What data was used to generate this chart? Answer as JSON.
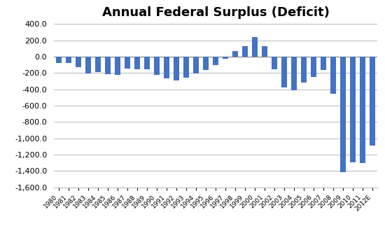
{
  "title": "Annual Federal Surplus (Deficit)",
  "years": [
    "1980",
    "1981",
    "1982",
    "1983",
    "1984",
    "1985",
    "1986",
    "1987",
    "1988",
    "1989",
    "1990",
    "1991",
    "1992",
    "1993",
    "1994",
    "1995",
    "1996",
    "1997",
    "1998",
    "1999",
    "2000",
    "2001",
    "2002",
    "2003",
    "2004",
    "2005",
    "2006",
    "2007",
    "2008",
    "2009",
    "2010",
    "2011",
    "2012E"
  ],
  "values": [
    -73.8,
    -79.0,
    -128.0,
    -207.8,
    -185.4,
    -212.3,
    -221.2,
    -149.7,
    -155.2,
    -152.6,
    -221.2,
    -269.4,
    -290.4,
    -255.1,
    -203.2,
    -163.9,
    -107.4,
    -21.9,
    69.3,
    125.6,
    236.2,
    128.2,
    -157.8,
    -377.6,
    -412.7,
    -318.3,
    -248.2,
    -160.7,
    -458.6,
    -1412.7,
    -1293.5,
    -1299.6,
    -1089.0
  ],
  "bar_color": "#4472C4",
  "ylim": [
    -1600,
    400
  ],
  "ytick_step": 200,
  "background_color": "#ffffff",
  "grid_color": "#bfbfbf",
  "title_fontsize": 13,
  "ytick_fontsize": 8,
  "xtick_fontsize": 6.5
}
